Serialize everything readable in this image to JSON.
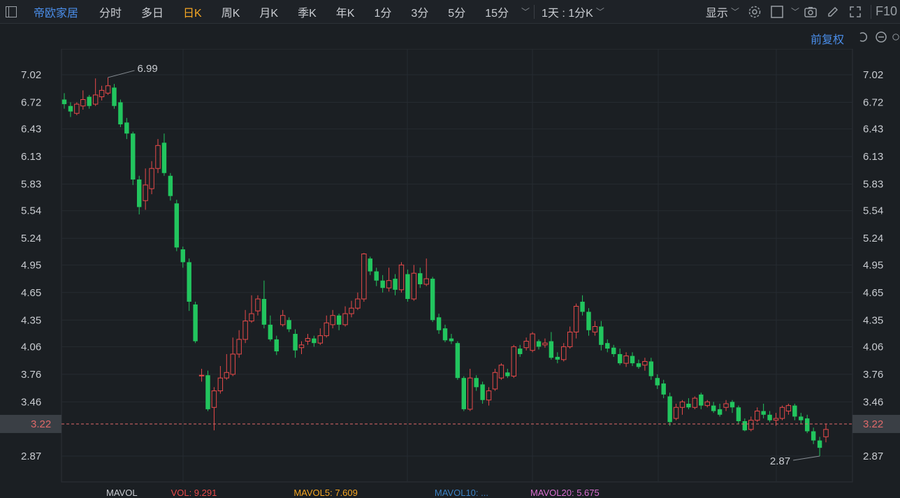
{
  "toolbar": {
    "stock_name": "帝欧家居",
    "tabs": [
      {
        "label": "分时",
        "active": false
      },
      {
        "label": "多日",
        "active": false
      },
      {
        "label": "日K",
        "active": true
      },
      {
        "label": "周K",
        "active": false
      },
      {
        "label": "月K",
        "active": false
      },
      {
        "label": "季K",
        "active": false
      },
      {
        "label": "年K",
        "active": false
      },
      {
        "label": "1分",
        "active": false
      },
      {
        "label": "3分",
        "active": false
      },
      {
        "label": "5分",
        "active": false
      },
      {
        "label": "15分",
        "active": false
      }
    ],
    "period_select": "1天 : 1分K",
    "display_label": "显示",
    "f10_label": "F10",
    "adjust_label": "前复权"
  },
  "indicator_bar": {
    "mavol": "MAVOL",
    "vol": "VOL: 9.291",
    "mavol5": "MAVOL5: 7.609",
    "mavol10": "MAVOL10: ...",
    "mavol20": "MAVOL20: 5.675"
  },
  "colors": {
    "up": "#e84a4a",
    "down": "#22c55e",
    "accent": "#f5a623",
    "link": "#4a8de8",
    "current_price": "#e06a6a"
  },
  "chart_data": {
    "type": "candlestick",
    "y_ticks": [
      "7.02",
      "6.72",
      "6.43",
      "6.13",
      "5.83",
      "5.54",
      "5.24",
      "4.95",
      "4.65",
      "4.35",
      "4.06",
      "3.76",
      "3.46",
      "2.87"
    ],
    "ylim": [
      2.7,
      7.2
    ],
    "current_price": 3.22,
    "current_price_label": "3.22",
    "annotations": [
      {
        "label": "6.99",
        "value": 6.99,
        "index": 7
      },
      {
        "label": "2.87",
        "value": 2.87,
        "index": 121
      }
    ],
    "candles": [
      [
        6.75,
        6.7,
        6.82,
        6.65
      ],
      [
        6.68,
        6.62,
        6.72,
        6.56
      ],
      [
        6.6,
        6.7,
        6.72,
        6.58
      ],
      [
        6.68,
        6.75,
        6.85,
        6.64
      ],
      [
        6.78,
        6.68,
        6.8,
        6.65
      ],
      [
        6.7,
        6.8,
        6.98,
        6.68
      ],
      [
        6.78,
        6.85,
        6.9,
        6.74
      ],
      [
        6.82,
        6.9,
        6.99,
        6.8
      ],
      [
        6.88,
        6.68,
        6.92,
        6.65
      ],
      [
        6.72,
        6.48,
        6.75,
        6.45
      ],
      [
        6.5,
        6.38,
        6.55,
        6.32
      ],
      [
        6.38,
        5.88,
        6.4,
        5.82
      ],
      [
        5.88,
        5.58,
        5.92,
        5.5
      ],
      [
        5.65,
        5.82,
        6.0,
        5.55
      ],
      [
        5.78,
        6.0,
        6.08,
        5.72
      ],
      [
        6.0,
        6.25,
        6.32,
        5.95
      ],
      [
        6.28,
        5.95,
        6.38,
        5.92
      ],
      [
        5.92,
        5.7,
        5.95,
        5.65
      ],
      [
        5.62,
        5.14,
        5.66,
        5.1
      ],
      [
        5.12,
        4.98,
        5.15,
        4.92
      ],
      [
        4.98,
        4.55,
        5.02,
        4.45
      ],
      [
        4.52,
        4.12,
        4.55,
        4.1
      ],
      [
        3.75,
        3.75,
        3.82,
        3.68
      ],
      [
        3.75,
        3.38,
        3.8,
        3.36
      ],
      [
        3.4,
        3.58,
        3.62,
        3.15
      ],
      [
        3.58,
        3.72,
        3.85,
        3.55
      ],
      [
        3.72,
        3.78,
        3.98,
        3.7
      ],
      [
        3.76,
        3.98,
        4.16,
        3.74
      ],
      [
        3.98,
        4.14,
        4.24,
        3.94
      ],
      [
        4.14,
        4.34,
        4.46,
        4.1
      ],
      [
        4.34,
        4.42,
        4.62,
        4.32
      ],
      [
        4.45,
        4.58,
        4.62,
        4.4
      ],
      [
        4.58,
        4.3,
        4.78,
        4.26
      ],
      [
        4.3,
        4.14,
        4.4,
        4.12
      ],
      [
        4.14,
        4.01,
        4.18,
        3.97
      ],
      [
        4.3,
        4.4,
        4.46,
        4.28
      ],
      [
        4.35,
        4.25,
        4.38,
        4.22
      ],
      [
        4.2,
        4.02,
        4.25,
        3.94
      ],
      [
        4.05,
        4.08,
        4.12,
        3.98
      ],
      [
        4.12,
        4.15,
        4.2,
        4.08
      ],
      [
        4.15,
        4.1,
        4.18,
        4.06
      ],
      [
        4.1,
        4.18,
        4.26,
        4.08
      ],
      [
        4.18,
        4.32,
        4.4,
        4.16
      ],
      [
        4.3,
        4.4,
        4.46,
        4.26
      ],
      [
        4.4,
        4.3,
        4.42,
        4.24
      ],
      [
        4.3,
        4.42,
        4.5,
        4.28
      ],
      [
        4.42,
        4.48,
        4.56,
        4.38
      ],
      [
        4.48,
        4.58,
        4.65,
        4.46
      ],
      [
        4.58,
        5.07,
        5.08,
        4.55
      ],
      [
        5.02,
        4.88,
        5.04,
        4.84
      ],
      [
        4.88,
        4.78,
        4.92,
        4.72
      ],
      [
        4.78,
        4.7,
        4.84,
        4.65
      ],
      [
        4.7,
        4.78,
        4.92,
        4.66
      ],
      [
        4.8,
        4.68,
        4.85,
        4.62
      ],
      [
        4.68,
        4.95,
        4.98,
        4.65
      ],
      [
        4.85,
        4.58,
        4.9,
        4.55
      ],
      [
        4.58,
        4.86,
        4.95,
        4.56
      ],
      [
        4.86,
        4.74,
        4.92,
        4.7
      ],
      [
        4.74,
        4.8,
        5.02,
        4.72
      ],
      [
        4.8,
        4.35,
        4.82,
        4.33
      ],
      [
        4.38,
        4.24,
        4.42,
        4.2
      ],
      [
        4.26,
        4.13,
        4.3,
        4.11
      ],
      [
        4.15,
        4.12,
        4.2,
        4.09
      ],
      [
        4.1,
        3.72,
        4.12,
        3.7
      ],
      [
        3.72,
        3.38,
        3.74,
        3.36
      ],
      [
        3.38,
        3.72,
        3.82,
        3.36
      ],
      [
        3.72,
        3.62,
        3.75,
        3.58
      ],
      [
        3.65,
        3.48,
        3.68,
        3.44
      ],
      [
        3.48,
        3.58,
        3.62,
        3.42
      ],
      [
        3.6,
        3.78,
        3.82,
        3.58
      ],
      [
        3.72,
        3.86,
        3.88,
        3.7
      ],
      [
        3.78,
        3.74,
        3.82,
        3.72
      ],
      [
        3.74,
        4.06,
        4.08,
        3.72
      ],
      [
        4.04,
        3.98,
        4.08,
        3.95
      ],
      [
        4.05,
        4.12,
        4.16,
        4.02
      ],
      [
        4.02,
        4.2,
        4.22,
        4.0
      ],
      [
        4.12,
        4.06,
        4.14,
        4.03
      ],
      [
        4.08,
        4.1,
        4.15,
        4.05
      ],
      [
        4.12,
        3.94,
        4.22,
        3.92
      ],
      [
        3.95,
        3.92,
        4.0,
        3.88
      ],
      [
        3.92,
        4.06,
        4.1,
        3.9
      ],
      [
        4.06,
        4.22,
        4.28,
        4.04
      ],
      [
        4.22,
        4.5,
        4.53,
        4.15
      ],
      [
        4.55,
        4.44,
        4.62,
        4.4
      ],
      [
        4.44,
        4.24,
        4.48,
        4.18
      ],
      [
        4.22,
        4.28,
        4.34,
        4.18
      ],
      [
        4.28,
        4.08,
        4.34,
        4.02
      ],
      [
        4.1,
        4.04,
        4.14,
        4.0
      ],
      [
        4.05,
        3.98,
        4.08,
        3.95
      ],
      [
        3.98,
        3.88,
        4.04,
        3.86
      ],
      [
        3.88,
        3.96,
        4.0,
        3.84
      ],
      [
        3.96,
        3.88,
        4.0,
        3.85
      ],
      [
        3.88,
        3.84,
        3.92,
        3.82
      ],
      [
        3.86,
        3.9,
        3.94,
        3.8
      ],
      [
        3.9,
        3.74,
        3.94,
        3.7
      ],
      [
        3.72,
        3.64,
        3.76,
        3.6
      ],
      [
        3.66,
        3.54,
        3.7,
        3.5
      ],
      [
        3.52,
        3.24,
        3.56,
        3.2
      ],
      [
        3.28,
        3.4,
        3.44,
        3.26
      ],
      [
        3.4,
        3.46,
        3.48,
        3.32
      ],
      [
        3.44,
        3.4,
        3.5,
        3.38
      ],
      [
        3.4,
        3.5,
        3.52,
        3.38
      ],
      [
        3.54,
        3.42,
        3.56,
        3.38
      ],
      [
        3.42,
        3.46,
        3.48,
        3.4
      ],
      [
        3.42,
        3.36,
        3.46,
        3.34
      ],
      [
        3.38,
        3.32,
        3.44,
        3.3
      ],
      [
        3.4,
        3.44,
        3.48,
        3.36
      ],
      [
        3.46,
        3.4,
        3.48,
        3.34
      ],
      [
        3.4,
        3.25,
        3.42,
        3.22
      ],
      [
        3.25,
        3.15,
        3.28,
        3.14
      ],
      [
        3.16,
        3.26,
        3.3,
        3.14
      ],
      [
        3.26,
        3.36,
        3.4,
        3.24
      ],
      [
        3.36,
        3.32,
        3.44,
        3.28
      ],
      [
        3.32,
        3.26,
        3.36,
        3.24
      ],
      [
        3.26,
        3.28,
        3.34,
        3.2
      ],
      [
        3.28,
        3.4,
        3.42,
        3.26
      ],
      [
        3.36,
        3.42,
        3.44,
        3.32
      ],
      [
        3.42,
        3.3,
        3.44,
        3.26
      ],
      [
        3.3,
        3.26,
        3.34,
        3.22
      ],
      [
        3.28,
        3.14,
        3.32,
        3.12
      ],
      [
        3.14,
        3.04,
        3.18,
        3.0
      ],
      [
        3.04,
        2.96,
        3.08,
        2.87
      ],
      [
        3.08,
        3.16,
        3.22,
        3.02
      ]
    ]
  }
}
